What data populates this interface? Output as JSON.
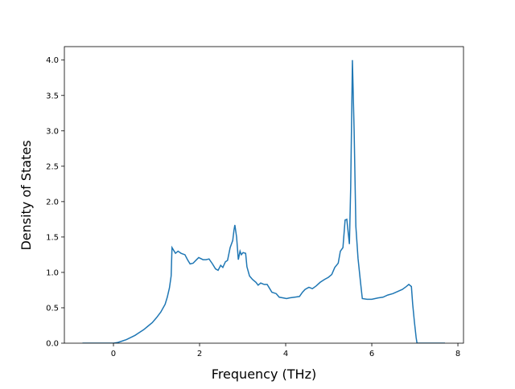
{
  "chart_data": {
    "type": "line",
    "x_label": "Frequency (THz)",
    "y_label": "Density of States",
    "xlim": [
      -1.14,
      8.13
    ],
    "ylim": [
      0,
      4.19
    ],
    "xticks": [
      0,
      2,
      4,
      6,
      8
    ],
    "yticks": [
      {
        "value": 0,
        "label": "0.0"
      },
      0.5,
      {
        "value": 1,
        "label": "1.0"
      },
      1.5,
      {
        "value": 2,
        "label": "2.0"
      },
      2.5,
      {
        "value": 3,
        "label": "3.0"
      },
      3.5,
      {
        "value": 4,
        "label": "4.0"
      }
    ],
    "series": [
      {
        "color": "#1f77b4",
        "x": [
          -0.72,
          -0.5,
          0,
          0.1,
          0.2,
          0.3,
          0.4,
          0.5,
          0.6,
          0.7,
          0.8,
          0.9,
          1.0,
          1.1,
          1.2,
          1.25,
          1.3,
          1.34,
          1.36,
          1.44,
          1.5,
          1.57,
          1.66,
          1.72,
          1.78,
          1.85,
          1.93,
          1.98,
          2.08,
          2.15,
          2.22,
          2.3,
          2.37,
          2.43,
          2.49,
          2.54,
          2.6,
          2.65,
          2.71,
          2.77,
          2.8,
          2.82,
          2.86,
          2.9,
          2.94,
          2.97,
          3.01,
          3.07,
          3.1,
          3.16,
          3.23,
          3.31,
          3.36,
          3.42,
          3.5,
          3.57,
          3.63,
          3.68,
          3.78,
          3.85,
          3.94,
          4.02,
          4.09,
          4.21,
          4.32,
          4.39,
          4.45,
          4.54,
          4.62,
          4.71,
          4.8,
          4.9,
          4.99,
          5.07,
          5.14,
          5.22,
          5.27,
          5.33,
          5.38,
          5.42,
          5.48,
          5.51,
          5.55,
          5.59,
          5.63,
          5.68,
          5.74,
          5.78,
          5.89,
          6.0,
          6.15,
          6.26,
          6.37,
          6.49,
          6.6,
          6.71,
          6.8,
          6.86,
          6.92,
          6.95,
          6.99,
          7.03,
          7.05,
          7.7
        ],
        "values": [
          0,
          0,
          0,
          0.01,
          0.03,
          0.05,
          0.08,
          0.11,
          0.15,
          0.19,
          0.24,
          0.29,
          0.36,
          0.44,
          0.55,
          0.65,
          0.78,
          0.95,
          1.35,
          1.27,
          1.3,
          1.27,
          1.25,
          1.18,
          1.12,
          1.13,
          1.18,
          1.21,
          1.18,
          1.18,
          1.19,
          1.12,
          1.05,
          1.03,
          1.1,
          1.07,
          1.15,
          1.17,
          1.35,
          1.45,
          1.6,
          1.67,
          1.5,
          1.18,
          1.3,
          1.25,
          1.28,
          1.27,
          1.08,
          0.95,
          0.9,
          0.86,
          0.82,
          0.85,
          0.83,
          0.83,
          0.77,
          0.72,
          0.7,
          0.65,
          0.64,
          0.63,
          0.64,
          0.65,
          0.66,
          0.72,
          0.76,
          0.79,
          0.77,
          0.81,
          0.86,
          0.9,
          0.93,
          0.97,
          1.07,
          1.13,
          1.3,
          1.35,
          1.74,
          1.75,
          1.4,
          2.2,
          4.0,
          3.0,
          1.65,
          1.2,
          0.85,
          0.63,
          0.62,
          0.62,
          0.64,
          0.65,
          0.68,
          0.7,
          0.73,
          0.76,
          0.8,
          0.83,
          0.8,
          0.55,
          0.3,
          0.08,
          0,
          0
        ]
      }
    ]
  }
}
